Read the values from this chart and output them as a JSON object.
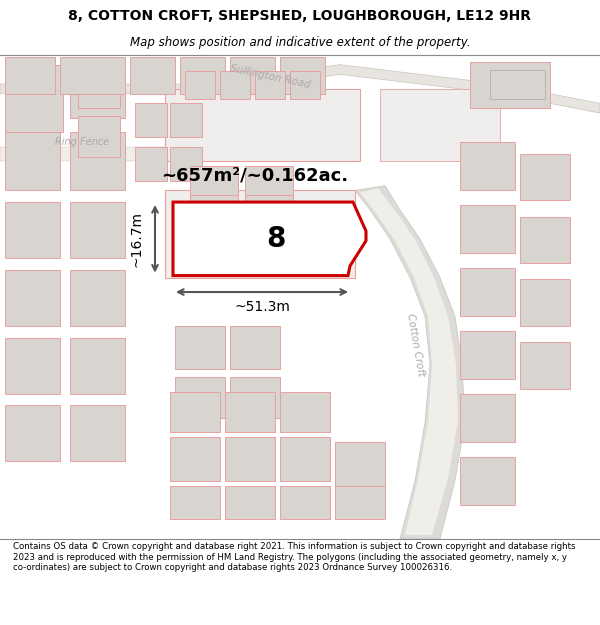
{
  "title_line1": "8, COTTON CROFT, SHEPSHED, LOUGHBOROUGH, LE12 9HR",
  "title_line2": "Map shows position and indicative extent of the property.",
  "footer_text": "Contains OS data © Crown copyright and database right 2021. This information is subject to Crown copyright and database rights 2023 and is reproduced with the permission of HM Land Registry. The polygons (including the associated geometry, namely x, y co-ordinates) are subject to Crown copyright and database rights 2023 Ordnance Survey 100026316.",
  "map_bg": "#f8f6f4",
  "plot_fill": "#f0eeed",
  "plot_edge": "#e8a0a0",
  "building_fill": "#d8d4d0",
  "highlight_fill": "#ffffff",
  "highlight_edge": "#cc0000",
  "road_fill": "#ffffff",
  "road_edge": "#c0bcb8",
  "area_text": "~657m²/~0.162ac.",
  "width_text": "~51.3m",
  "height_text": "~16.7m",
  "plot_number": "8",
  "road_label_cotton": "Cotton Croft",
  "road_label_sullington": "Sullington Road",
  "road_label_ringfence": "Ring Fence",
  "dim_color": "#555555",
  "label_color": "#aaaaaa",
  "title_fontsize": 10,
  "subtitle_fontsize": 8.5,
  "footer_fontsize": 6.2
}
